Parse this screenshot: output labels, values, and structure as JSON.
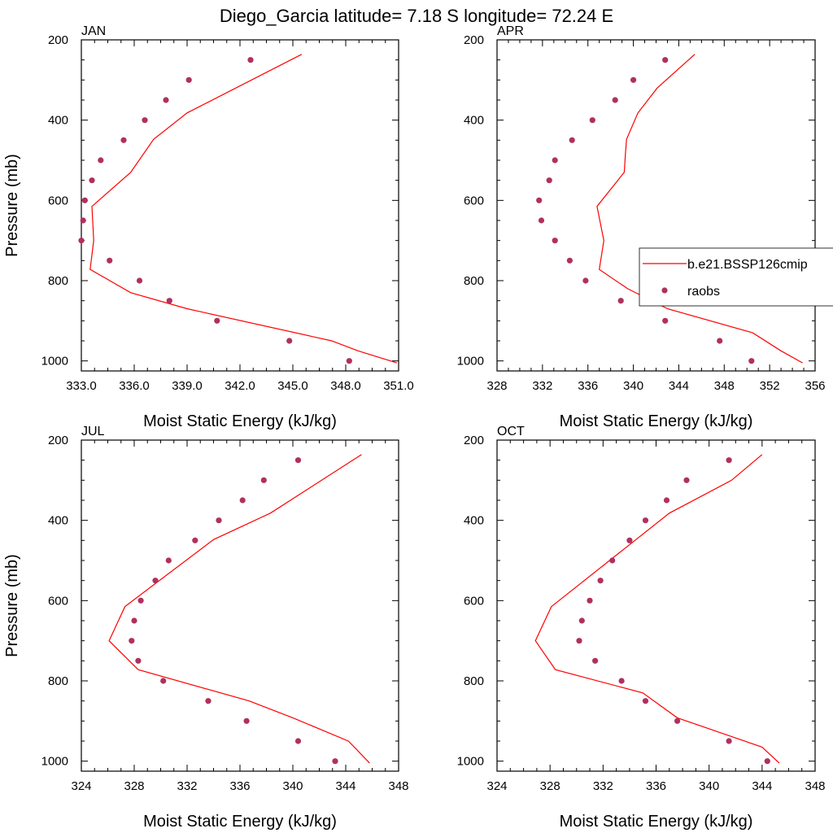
{
  "title": "Diego_Garcia  latitude= 7.18 S longitude= 72.24 E",
  "legend": {
    "placement": "right of APR panel",
    "entries": [
      {
        "label": "b.e21.BSSP126cmip",
        "style": "line",
        "color": "#ff0000"
      },
      {
        "label": "raobs",
        "style": "marker",
        "color": "#b03060"
      }
    ]
  },
  "chart_data": [
    {
      "type": "line+scatter",
      "panel": "JAN",
      "xlabel": "Moist Static Energy (kJ/kg)",
      "ylabel": "Pressure (mb)",
      "xlim": [
        333,
        351
      ],
      "xticks": [
        "333.0",
        "336.0",
        "339.0",
        "342.0",
        "345.0",
        "348.0",
        "351.0"
      ],
      "ylim": [
        1025,
        200
      ],
      "yticks": [
        "200",
        "400",
        "600",
        "800",
        "1000"
      ],
      "series": [
        {
          "name": "b.e21.BSSP126cmip",
          "kind": "line",
          "color": "#ff0000",
          "x": [
            345.5,
            339.0,
            337.1,
            335.8,
            333.6,
            333.7,
            333.5,
            335.8,
            339.0,
            347.2,
            348.7,
            350.9
          ],
          "y": [
            236,
            382,
            448,
            530,
            615,
            700,
            772,
            830,
            870,
            950,
            975,
            1005
          ]
        },
        {
          "name": "raobs",
          "kind": "scatter",
          "color": "#b03060",
          "x": [
            342.6,
            339.1,
            337.8,
            336.6,
            335.4,
            334.1,
            333.6,
            333.2,
            333.1,
            333.0,
            334.6,
            336.3,
            338.0,
            340.7,
            344.8,
            348.2
          ],
          "y": [
            250,
            300,
            350,
            400,
            450,
            500,
            550,
            600,
            650,
            700,
            750,
            800,
            850,
            900,
            950,
            1000
          ]
        }
      ]
    },
    {
      "type": "line+scatter",
      "panel": "APR",
      "xlabel": "Moist Static Energy (kJ/kg)",
      "ylabel": "",
      "xlim": [
        328,
        356
      ],
      "xticks": [
        "328",
        "332",
        "336",
        "340",
        "344",
        "348",
        "352",
        "356"
      ],
      "ylim": [
        1025,
        200
      ],
      "yticks": [
        "200",
        "400",
        "600",
        "800",
        "1000"
      ],
      "series": [
        {
          "name": "b.e21.BSSP126cmip",
          "kind": "line",
          "color": "#ff0000",
          "x": [
            345.4,
            342.1,
            340.4,
            339.4,
            339.3,
            339.2,
            336.8,
            337.4,
            337.0,
            339.5,
            343.0,
            350.5,
            353.0,
            354.9
          ],
          "y": [
            236,
            320,
            382,
            448,
            485,
            530,
            615,
            700,
            772,
            820,
            870,
            930,
            975,
            1005
          ]
        },
        {
          "name": "raobs",
          "kind": "scatter",
          "color": "#b03060",
          "x": [
            342.8,
            340.0,
            338.4,
            336.4,
            334.6,
            333.1,
            332.6,
            331.7,
            331.9,
            333.1,
            334.4,
            335.8,
            338.9,
            342.8,
            347.6,
            350.4
          ],
          "y": [
            250,
            300,
            350,
            400,
            450,
            500,
            550,
            600,
            650,
            700,
            750,
            800,
            850,
            900,
            950,
            1000
          ]
        }
      ]
    },
    {
      "type": "line+scatter",
      "panel": "JUL",
      "xlabel": "Moist Static Energy (kJ/kg)",
      "ylabel": "Pressure (mb)",
      "xlim": [
        324,
        348
      ],
      "xticks": [
        "324",
        "328",
        "332",
        "336",
        "340",
        "344",
        "348"
      ],
      "ylim": [
        1025,
        200
      ],
      "yticks": [
        "200",
        "400",
        "600",
        "800",
        "1000"
      ],
      "series": [
        {
          "name": "b.e21.BSSP126cmip",
          "kind": "line",
          "color": "#ff0000",
          "x": [
            345.2,
            338.3,
            334.0,
            327.3,
            326.1,
            328.3,
            336.7,
            340.0,
            344.2,
            344.8,
            345.8
          ],
          "y": [
            236,
            382,
            448,
            615,
            700,
            772,
            850,
            892,
            950,
            970,
            1005
          ]
        },
        {
          "name": "raobs",
          "kind": "scatter",
          "color": "#b03060",
          "x": [
            340.4,
            337.8,
            336.2,
            334.4,
            332.6,
            330.6,
            329.6,
            328.5,
            328.0,
            327.8,
            328.3,
            330.2,
            333.6,
            336.5,
            340.4,
            343.2
          ],
          "y": [
            250,
            300,
            350,
            400,
            450,
            500,
            550,
            600,
            650,
            700,
            750,
            800,
            850,
            900,
            950,
            1000
          ]
        }
      ]
    },
    {
      "type": "line+scatter",
      "panel": "OCT",
      "xlabel": "Moist Static Energy (kJ/kg)",
      "ylabel": "",
      "xlim": [
        324,
        348
      ],
      "xticks": [
        "324",
        "328",
        "332",
        "336",
        "340",
        "344",
        "348"
      ],
      "ylim": [
        1025,
        200
      ],
      "yticks": [
        "200",
        "400",
        "600",
        "800",
        "1000"
      ],
      "series": [
        {
          "name": "b.e21.BSSP126cmip",
          "kind": "line",
          "color": "#ff0000",
          "x": [
            344.0,
            341.7,
            337.0,
            328.1,
            326.9,
            328.4,
            335.0,
            337.6,
            344.0,
            345.3
          ],
          "y": [
            236,
            300,
            382,
            615,
            700,
            772,
            830,
            892,
            965,
            1005
          ]
        },
        {
          "name": "raobs",
          "kind": "scatter",
          "color": "#b03060",
          "x": [
            341.5,
            338.3,
            336.8,
            335.2,
            334.0,
            332.7,
            331.8,
            331.0,
            330.4,
            330.2,
            331.4,
            333.4,
            335.2,
            337.6,
            341.5,
            344.4
          ],
          "y": [
            250,
            300,
            350,
            400,
            450,
            500,
            550,
            600,
            650,
            700,
            750,
            800,
            850,
            900,
            950,
            1000
          ]
        }
      ]
    }
  ]
}
